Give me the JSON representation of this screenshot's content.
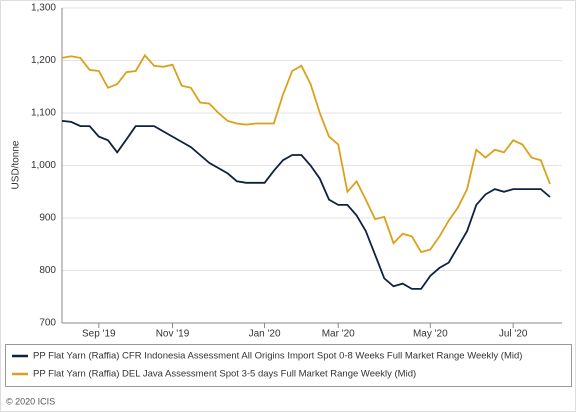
{
  "chart_data": {
    "type": "line",
    "y_label": "USD/tonne",
    "categories": [
      null,
      null,
      null,
      null,
      "Sep '19",
      null,
      null,
      null,
      null,
      null,
      null,
      null,
      "Nov '19",
      null,
      null,
      null,
      null,
      null,
      null,
      null,
      null,
      null,
      "Jan '20",
      null,
      null,
      null,
      null,
      null,
      null,
      null,
      "Mar '20",
      null,
      null,
      null,
      null,
      null,
      null,
      null,
      null,
      null,
      "May '20",
      null,
      null,
      null,
      null,
      null,
      null,
      null,
      null,
      "Jul '20",
      null,
      null,
      null,
      null
    ],
    "series": [
      {
        "name": "PP Flat Yarn (Raffia) CFR Indonesia Assessment All Origins Import Spot 0-8 Weeks Full Market Range Weekly (Mid)",
        "color": "#0d2240",
        "values": [
          1085,
          1083,
          1075,
          1075,
          1055,
          1048,
          1025,
          1050,
          1075,
          1075,
          1075,
          1065,
          1055,
          1045,
          1035,
          1020,
          1005,
          995,
          985,
          970,
          967,
          967,
          967,
          990,
          1010,
          1020,
          1020,
          1000,
          975,
          935,
          925,
          925,
          905,
          875,
          830,
          785,
          770,
          775,
          765,
          765,
          790,
          805,
          815,
          845,
          875,
          925,
          945,
          955,
          950,
          955,
          955,
          955,
          955,
          940
        ]
      },
      {
        "name": "PP Flat Yarn (Raffia) DEL Java Assessment Spot 3-5 days Full Market Range Weekly (Mid)",
        "color": "#d9a21b",
        "values": [
          1205,
          1208,
          1205,
          1182,
          1180,
          1148,
          1155,
          1178,
          1180,
          1210,
          1190,
          1188,
          1192,
          1152,
          1148,
          1120,
          1118,
          1100,
          1085,
          1080,
          1078,
          1080,
          1080,
          1080,
          1135,
          1180,
          1190,
          1155,
          1100,
          1055,
          1040,
          950,
          970,
          935,
          898,
          902,
          852,
          870,
          865,
          835,
          840,
          865,
          895,
          920,
          955,
          1030,
          1015,
          1030,
          1025,
          1048,
          1040,
          1015,
          1010,
          965
        ]
      }
    ],
    "ylim": [
      700,
      1300
    ],
    "yticks": [
      700,
      800,
      900,
      {
        "value": 1000,
        "label": "1,000"
      },
      {
        "value": 1100,
        "label": "1,100"
      },
      {
        "value": 1200,
        "label": "1,200"
      },
      {
        "value": 1300,
        "label": "1,300"
      }
    ],
    "grid": true,
    "footer": "© 2020 ICIS"
  }
}
